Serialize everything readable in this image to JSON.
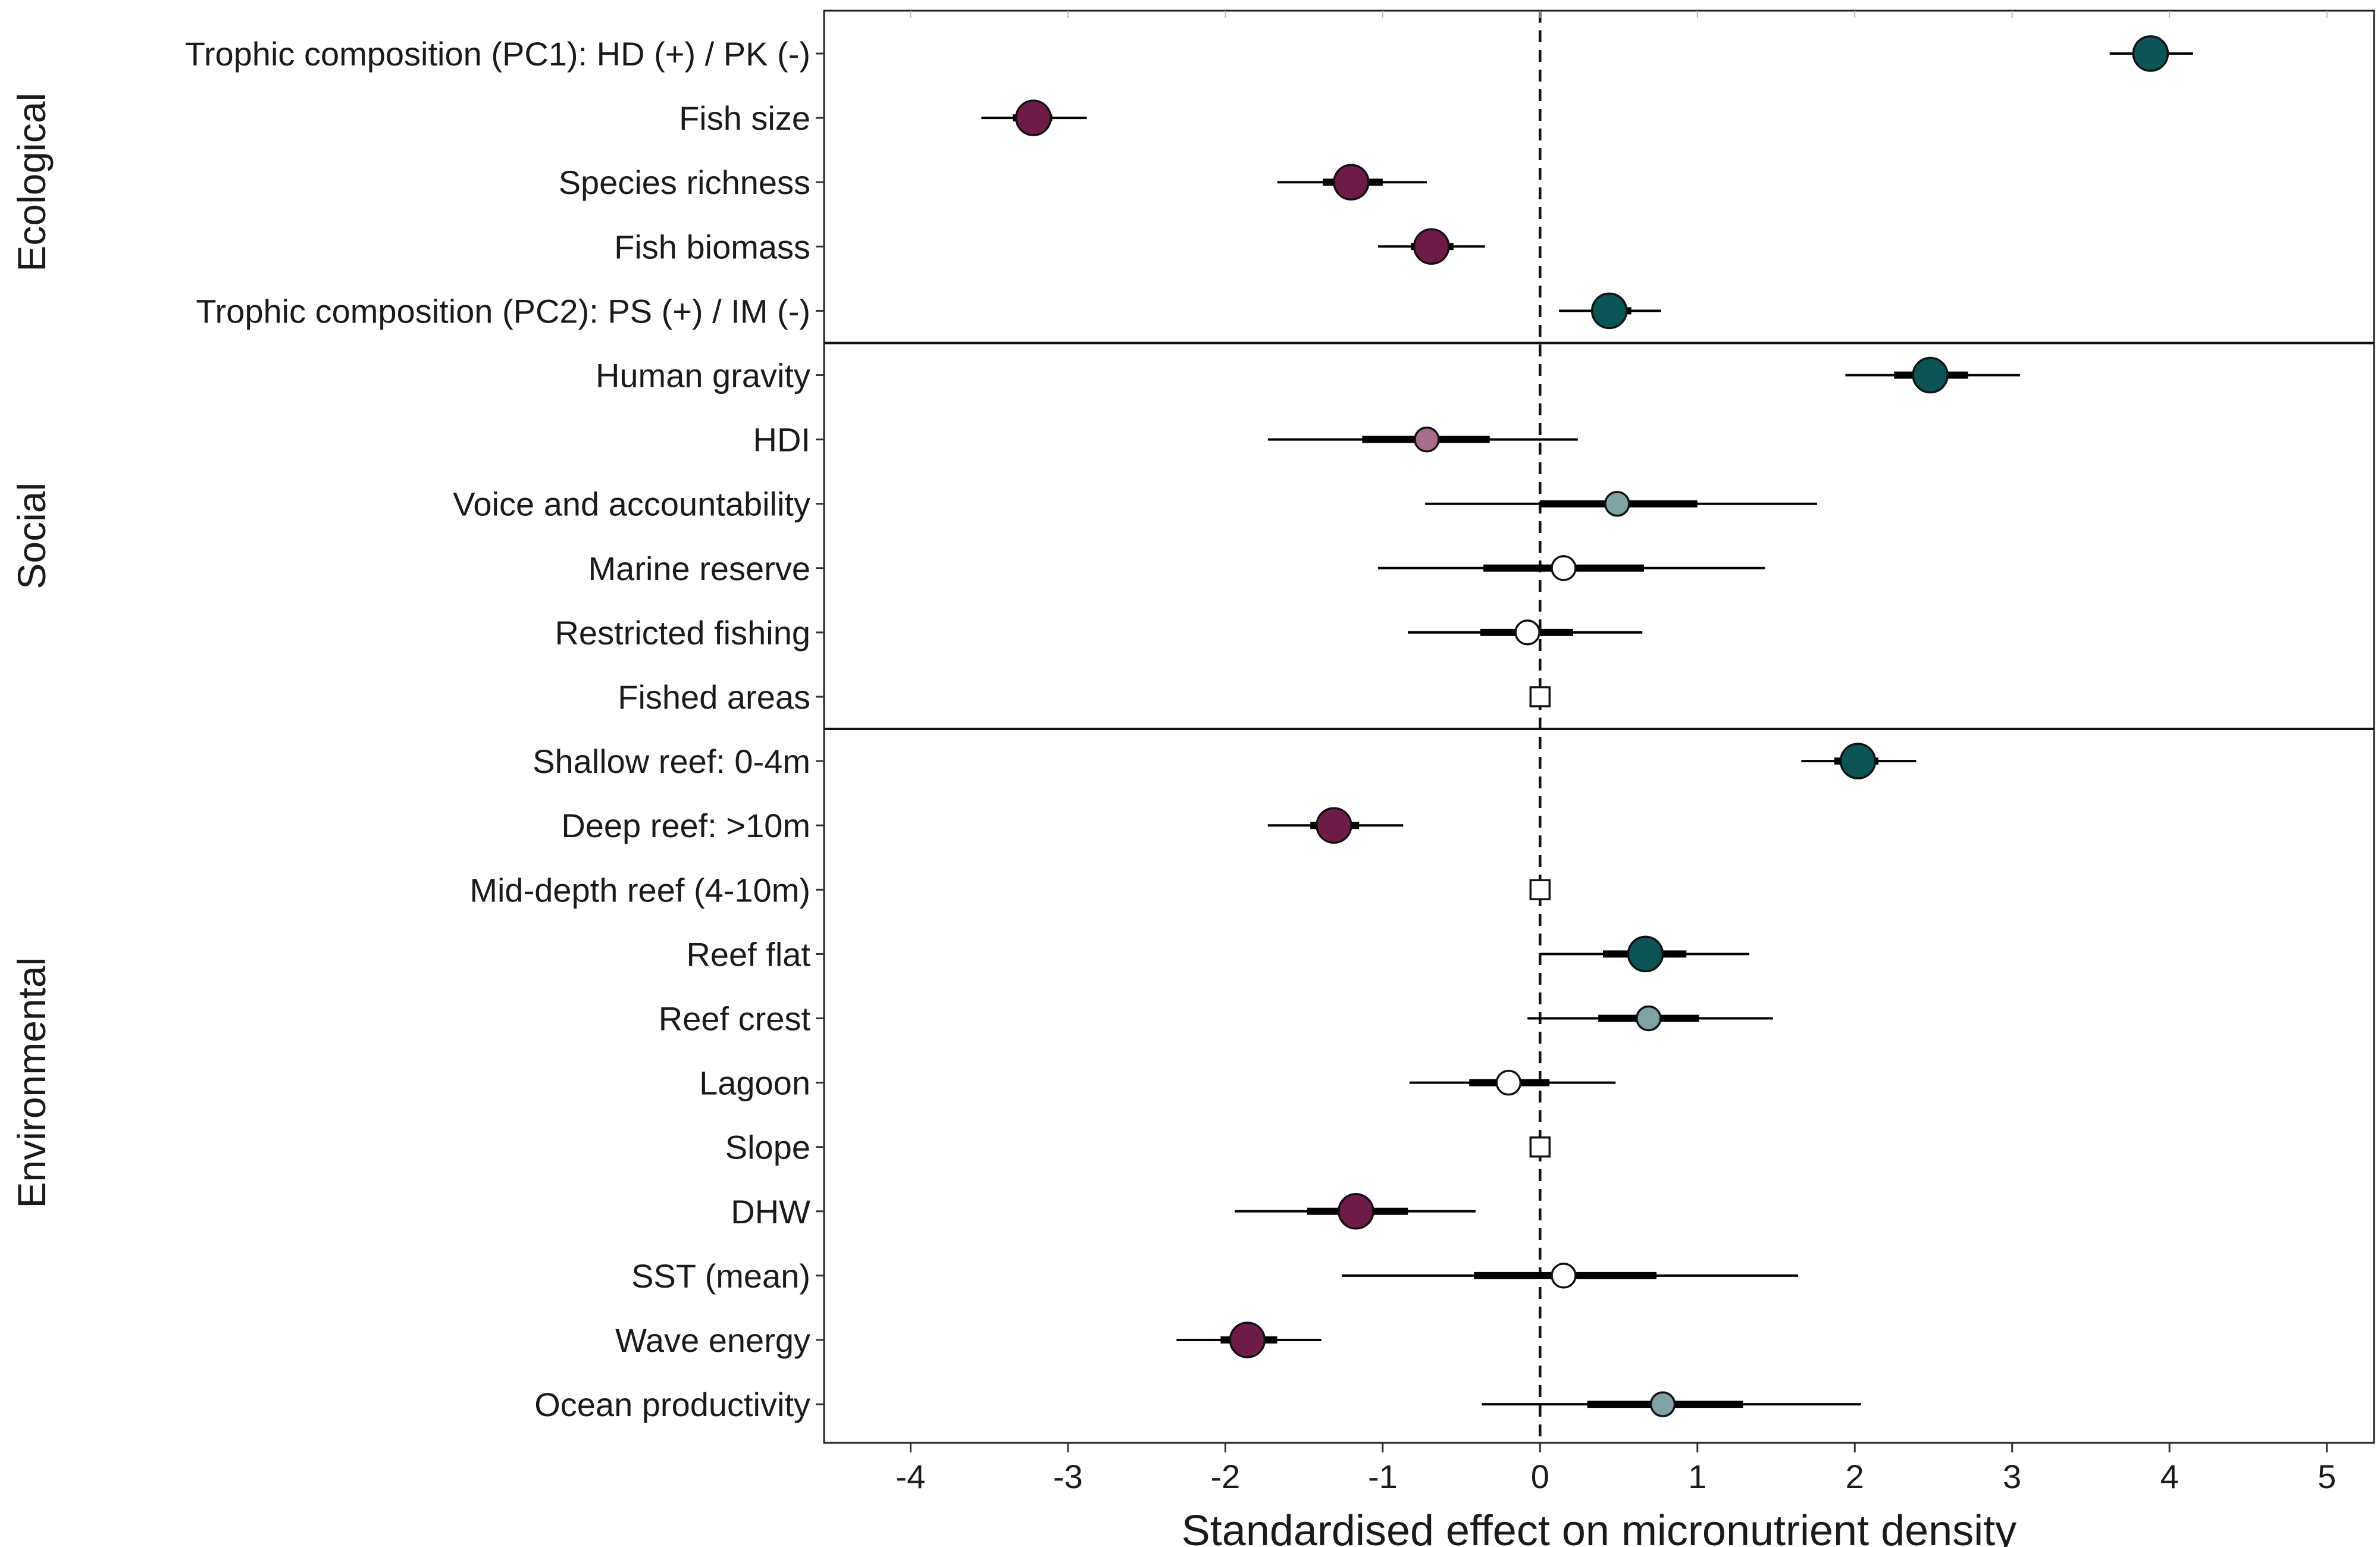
{
  "chart_data": {
    "type": "forest",
    "xlabel": "Standardised effect on micronutrient density",
    "xlim": [
      -4.55,
      5.3
    ],
    "xticks": [
      -4,
      -3,
      -2,
      -1,
      0,
      1,
      2,
      3,
      4,
      5
    ],
    "reference_line": 0,
    "colors": {
      "positive": "#0b5556",
      "positive_weak": "#7fa3a3",
      "negative": "#6e1c47",
      "negative_weak": "#a86c8c",
      "neutral": "#ffffff",
      "outline": "#111111"
    },
    "groups": [
      {
        "name": "Ecological",
        "rows": [
          {
            "label": "Trophic composition (PC1): HD (+) / PK (-)",
            "estimate": 3.88,
            "ci50": [
              3.79,
              3.95
            ],
            "ci95": [
              3.62,
              4.15
            ],
            "category": "positive",
            "marker": "circle"
          },
          {
            "label": "Fish size",
            "estimate": -3.22,
            "ci50": [
              -3.35,
              -3.1
            ],
            "ci95": [
              -3.55,
              -2.88
            ],
            "category": "negative",
            "marker": "circle"
          },
          {
            "label": "Species richness",
            "estimate": -1.2,
            "ci50": [
              -1.38,
              -1.0
            ],
            "ci95": [
              -1.67,
              -0.72
            ],
            "category": "negative",
            "marker": "circle"
          },
          {
            "label": "Fish biomass",
            "estimate": -0.69,
            "ci50": [
              -0.82,
              -0.55
            ],
            "ci95": [
              -1.03,
              -0.35
            ],
            "category": "negative",
            "marker": "circle"
          },
          {
            "label": "Trophic composition (PC2): PS (+) / IM (-)",
            "estimate": 0.44,
            "ci50": [
              0.33,
              0.58
            ],
            "ci95": [
              0.12,
              0.77
            ],
            "category": "positive",
            "marker": "circle"
          }
        ]
      },
      {
        "name": "Social",
        "rows": [
          {
            "label": "Human gravity",
            "estimate": 2.48,
            "ci50": [
              2.25,
              2.72
            ],
            "ci95": [
              1.94,
              3.05
            ],
            "category": "positive",
            "marker": "circle"
          },
          {
            "label": "HDI",
            "estimate": -0.72,
            "ci50": [
              -1.13,
              -0.32
            ],
            "ci95": [
              -1.73,
              0.24
            ],
            "category": "negative_weak",
            "marker": "circle"
          },
          {
            "label": "Voice and accountability",
            "estimate": 0.49,
            "ci50": [
              0.0,
              1.0
            ],
            "ci95": [
              -0.73,
              1.76
            ],
            "category": "positive_weak",
            "marker": "circle"
          },
          {
            "label": "Marine reserve",
            "estimate": 0.15,
            "ci50": [
              -0.36,
              0.66
            ],
            "ci95": [
              -1.03,
              1.43
            ],
            "category": "neutral",
            "marker": "circle"
          },
          {
            "label": "Restricted fishing",
            "estimate": -0.08,
            "ci50": [
              -0.38,
              0.21
            ],
            "ci95": [
              -0.84,
              0.65
            ],
            "category": "neutral",
            "marker": "circle"
          },
          {
            "label": "Fished areas",
            "estimate": 0.0,
            "ci50": null,
            "ci95": null,
            "category": "neutral",
            "marker": "square"
          }
        ]
      },
      {
        "name": "Environmental",
        "rows": [
          {
            "label": "Shallow reef: 0-4m",
            "estimate": 2.02,
            "ci50": [
              1.87,
              2.15
            ],
            "ci95": [
              1.66,
              2.39
            ],
            "category": "positive",
            "marker": "circle"
          },
          {
            "label": "Deep reef: >10m",
            "estimate": -1.31,
            "ci50": [
              -1.46,
              -1.15
            ],
            "ci95": [
              -1.73,
              -0.87
            ],
            "category": "negative",
            "marker": "circle"
          },
          {
            "label": "Mid-depth reef (4-10m)",
            "estimate": 0.0,
            "ci50": null,
            "ci95": null,
            "category": "neutral",
            "marker": "square"
          },
          {
            "label": "Reef flat",
            "estimate": 0.67,
            "ci50": [
              0.4,
              0.93
            ],
            "ci95": [
              0.0,
              1.33
            ],
            "category": "positive",
            "marker": "circle"
          },
          {
            "label": "Reef crest",
            "estimate": 0.69,
            "ci50": [
              0.37,
              1.01
            ],
            "ci95": [
              -0.08,
              1.48
            ],
            "category": "positive_weak",
            "marker": "circle"
          },
          {
            "label": "Lagoon",
            "estimate": -0.2,
            "ci50": [
              -0.45,
              0.06
            ],
            "ci95": [
              -0.83,
              0.48
            ],
            "category": "neutral",
            "marker": "circle"
          },
          {
            "label": "Slope",
            "estimate": 0.0,
            "ci50": null,
            "ci95": null,
            "category": "neutral",
            "marker": "square"
          },
          {
            "label": "DHW",
            "estimate": -1.17,
            "ci50": [
              -1.48,
              -0.84
            ],
            "ci95": [
              -1.94,
              -0.41
            ],
            "category": "negative",
            "marker": "circle"
          },
          {
            "label": "SST (mean)",
            "estimate": 0.15,
            "ci50": [
              -0.42,
              0.74
            ],
            "ci95": [
              -1.26,
              1.64
            ],
            "category": "neutral",
            "marker": "circle"
          },
          {
            "label": "Wave energy",
            "estimate": -1.86,
            "ci50": [
              -2.03,
              -1.67
            ],
            "ci95": [
              -2.31,
              -1.39
            ],
            "category": "negative",
            "marker": "circle"
          },
          {
            "label": "Ocean productivity",
            "estimate": 0.78,
            "ci50": [
              0.3,
              1.29
            ],
            "ci95": [
              -0.37,
              2.04
            ],
            "category": "positive_weak",
            "marker": "circle"
          }
        ]
      }
    ]
  }
}
